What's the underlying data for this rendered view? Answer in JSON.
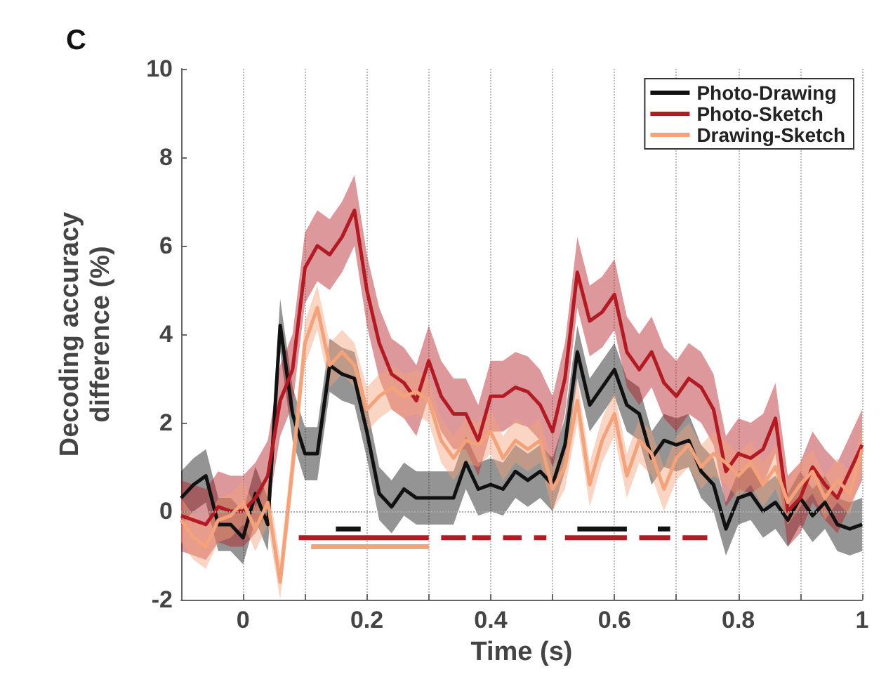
{
  "chart_data": {
    "type": "line",
    "title": "C",
    "xlabel": "Time (s)",
    "ylabel": "Decoding accuracy\ndifference (%)",
    "xlim": [
      -0.1,
      1
    ],
    "xticks": [
      0,
      {
        "value": 0.1,
        "label": null
      },
      0.2,
      {
        "value": 0.3,
        "label": null
      },
      0.4,
      {
        "value": 0.5,
        "label": null
      },
      0.6,
      {
        "value": 0.7,
        "label": null
      },
      0.8,
      {
        "value": 0.9,
        "label": null
      },
      1
    ],
    "ylim": [
      -2,
      10
    ],
    "yticks": [
      -2,
      0,
      2,
      4,
      6,
      8,
      10
    ],
    "grid": "x",
    "legend": "top right",
    "ref_lines": [
      {
        "axis": "y",
        "value": 0,
        "line_style": "dotted",
        "color": "#aaaaaa"
      }
    ],
    "x": [
      -0.1,
      -0.08,
      -0.06,
      -0.04,
      -0.02,
      0,
      0.02,
      0.04,
      0.06,
      0.08,
      0.1,
      0.12,
      0.14,
      0.16,
      0.18,
      0.2,
      0.22,
      0.24,
      0.26,
      0.28,
      0.3,
      0.32,
      0.34,
      0.36,
      0.38,
      0.4,
      0.42,
      0.44,
      0.46,
      0.48,
      0.5,
      0.52,
      0.54,
      0.56,
      0.58,
      0.6,
      0.62,
      0.64,
      0.66,
      0.68,
      0.7,
      0.72,
      0.74,
      0.76,
      0.78,
      0.8,
      0.82,
      0.84,
      0.86,
      0.88,
      0.9,
      0.92,
      0.94,
      0.96,
      0.98,
      1
    ],
    "series": [
      {
        "name": "Photo-Drawing",
        "color": "#111111",
        "values": [
          0.3,
          0.6,
          0.8,
          -0.3,
          -0.3,
          -0.6,
          0.4,
          -0.3,
          4.2,
          2.2,
          1.3,
          1.3,
          3.3,
          3.1,
          3.0,
          1.8,
          0.4,
          0.1,
          0.5,
          0.3,
          0.3,
          0.3,
          0.3,
          1.1,
          0.5,
          0.6,
          0.5,
          0.9,
          0.7,
          0.9,
          0.6,
          1.5,
          3.6,
          2.4,
          2.8,
          3.2,
          2.4,
          2.2,
          1.2,
          1.6,
          1.5,
          1.6,
          0.9,
          0.6,
          -0.4,
          0.3,
          0.4,
          0.0,
          0.2,
          -0.2,
          0.3,
          -0.1,
          0.2,
          -0.3,
          -0.4,
          -0.3
        ],
        "lower": [
          -0.3,
          0.0,
          0.2,
          -0.9,
          -0.9,
          -1.2,
          -0.2,
          -0.9,
          3.6,
          1.6,
          0.7,
          0.7,
          2.7,
          2.5,
          2.4,
          1.2,
          -0.2,
          -0.5,
          -0.1,
          -0.3,
          -0.3,
          -0.3,
          -0.3,
          0.5,
          -0.1,
          0.0,
          -0.1,
          0.3,
          0.1,
          0.3,
          0.0,
          0.9,
          3.0,
          1.8,
          2.2,
          2.6,
          1.8,
          1.6,
          0.6,
          1.0,
          0.9,
          1.0,
          0.3,
          0.0,
          -1.0,
          -0.3,
          -0.2,
          -0.6,
          -0.4,
          -0.8,
          -0.3,
          -0.7,
          -0.4,
          -0.9,
          -1.0,
          -0.9
        ],
        "upper": [
          0.9,
          1.2,
          1.4,
          0.3,
          0.3,
          0.0,
          1.0,
          0.3,
          4.8,
          2.8,
          1.9,
          1.9,
          3.9,
          3.7,
          3.6,
          2.4,
          1.0,
          0.7,
          1.1,
          0.9,
          0.9,
          0.9,
          0.9,
          1.7,
          1.1,
          1.2,
          1.1,
          1.5,
          1.3,
          1.5,
          1.2,
          2.1,
          4.2,
          3.0,
          3.4,
          3.8,
          3.0,
          2.8,
          1.8,
          2.2,
          2.1,
          2.2,
          1.5,
          1.2,
          0.2,
          0.9,
          1.0,
          0.6,
          0.8,
          0.4,
          0.9,
          0.5,
          0.8,
          0.3,
          0.2,
          0.3
        ]
      },
      {
        "name": "Photo-Sketch",
        "color": "#b31b24",
        "values": [
          -0.1,
          -0.2,
          -0.3,
          0.1,
          0.0,
          0.0,
          0.3,
          0.8,
          2.5,
          3.2,
          5.5,
          6.0,
          5.8,
          6.2,
          6.8,
          5.0,
          3.8,
          3.1,
          2.9,
          2.5,
          3.4,
          2.6,
          2.2,
          2.2,
          1.6,
          2.6,
          2.6,
          2.8,
          2.7,
          2.4,
          1.8,
          3.0,
          5.4,
          4.3,
          4.5,
          4.9,
          3.6,
          3.2,
          3.6,
          2.9,
          2.6,
          3.0,
          2.8,
          2.3,
          0.9,
          1.3,
          1.2,
          1.4,
          2.1,
          0.0,
          0.3,
          1.0,
          0.6,
          0.3,
          0.9,
          1.5
        ],
        "lower": [
          -0.9,
          -1.0,
          -1.1,
          -0.7,
          -0.8,
          -0.8,
          -0.5,
          0.0,
          1.7,
          2.4,
          4.7,
          5.2,
          5.0,
          5.4,
          6.0,
          4.2,
          3.0,
          2.3,
          2.1,
          1.7,
          2.6,
          1.8,
          1.4,
          1.4,
          0.8,
          1.8,
          1.8,
          2.0,
          1.9,
          1.6,
          1.0,
          2.2,
          4.6,
          3.5,
          3.7,
          4.1,
          2.8,
          2.4,
          2.8,
          2.1,
          1.8,
          2.2,
          2.0,
          1.5,
          0.1,
          0.5,
          0.4,
          0.6,
          1.3,
          -0.8,
          -0.5,
          0.2,
          -0.2,
          -0.5,
          0.1,
          0.7
        ],
        "upper": [
          0.7,
          0.6,
          0.5,
          0.9,
          0.8,
          0.8,
          1.1,
          1.6,
          3.3,
          4.0,
          6.3,
          6.8,
          6.6,
          7.0,
          7.6,
          5.8,
          4.6,
          3.9,
          3.7,
          3.3,
          4.2,
          3.4,
          3.0,
          3.0,
          2.4,
          3.4,
          3.4,
          3.6,
          3.5,
          3.2,
          2.6,
          3.8,
          6.2,
          5.1,
          5.3,
          5.7,
          4.4,
          4.0,
          4.4,
          3.7,
          3.4,
          3.8,
          3.6,
          3.1,
          1.7,
          2.1,
          2.0,
          2.2,
          2.9,
          0.8,
          1.1,
          1.8,
          1.4,
          1.1,
          1.7,
          2.3
        ]
      },
      {
        "name": "Drawing-Sketch",
        "color": "#f4a27a",
        "values": [
          -0.2,
          -0.6,
          -0.8,
          -0.2,
          -0.1,
          0.2,
          -0.4,
          0.2,
          -1.6,
          1.0,
          3.8,
          4.6,
          3.3,
          3.6,
          3.3,
          2.3,
          2.6,
          2.8,
          2.6,
          2.7,
          2.5,
          1.6,
          1.2,
          1.6,
          1.5,
          1.8,
          1.2,
          1.6,
          1.4,
          1.6,
          0.5,
          1.0,
          2.5,
          0.6,
          1.6,
          2.2,
          0.8,
          1.6,
          1.3,
          0.5,
          1.2,
          1.5,
          1.0,
          1.3,
          1.1,
          0.8,
          1.1,
          0.6,
          1.0,
          0.2,
          0.6,
          0.9,
          0.3,
          0.7,
          0.4,
          1.4
        ],
        "lower": [
          -0.7,
          -1.1,
          -1.3,
          -0.7,
          -0.6,
          -0.3,
          -0.9,
          -0.3,
          -2.0,
          0.5,
          3.3,
          4.1,
          2.8,
          3.1,
          2.8,
          1.8,
          2.1,
          2.3,
          2.1,
          2.2,
          2.0,
          1.1,
          0.7,
          1.1,
          1.0,
          1.3,
          0.7,
          1.1,
          0.9,
          1.1,
          0.0,
          0.5,
          2.0,
          0.1,
          1.1,
          1.7,
          0.3,
          1.1,
          0.8,
          0.0,
          0.7,
          1.0,
          0.5,
          0.8,
          0.6,
          0.3,
          0.6,
          0.1,
          0.5,
          -0.3,
          0.1,
          0.4,
          -0.2,
          0.2,
          -0.1,
          0.9
        ],
        "upper": [
          0.3,
          -0.1,
          -0.3,
          0.3,
          0.4,
          0.7,
          0.1,
          0.7,
          -1.1,
          1.5,
          4.3,
          5.1,
          3.8,
          4.1,
          3.8,
          2.8,
          3.1,
          3.3,
          3.1,
          3.2,
          3.0,
          2.1,
          1.7,
          2.1,
          2.0,
          2.3,
          1.7,
          2.1,
          1.9,
          2.1,
          1.0,
          1.5,
          3.0,
          1.1,
          2.1,
          2.7,
          1.3,
          2.1,
          1.8,
          1.0,
          1.7,
          2.0,
          1.5,
          1.8,
          1.6,
          1.3,
          1.6,
          1.1,
          1.5,
          0.7,
          1.1,
          1.4,
          0.8,
          1.2,
          0.9,
          1.9
        ]
      },
      {
        "color": "#111111",
        "x": [
          0.15,
          0.19
        ],
        "values": [
          -0.4,
          -0.4
        ]
      },
      {
        "color": "#111111",
        "x": [
          0.54,
          0.62
        ],
        "values": [
          -0.4,
          -0.4
        ]
      },
      {
        "color": "#111111",
        "x": [
          0.67,
          0.69
        ],
        "values": [
          -0.4,
          -0.4
        ]
      },
      {
        "color": "#b31b24",
        "x": [
          0.09,
          0.3
        ],
        "values": [
          -0.6,
          -0.6
        ]
      },
      {
        "color": "#b31b24",
        "x": [
          0.32,
          0.36
        ],
        "values": [
          -0.6,
          -0.6
        ]
      },
      {
        "color": "#b31b24",
        "x": [
          0.37,
          0.4
        ],
        "values": [
          -0.6,
          -0.6
        ]
      },
      {
        "color": "#b31b24",
        "x": [
          0.42,
          0.45
        ],
        "values": [
          -0.6,
          -0.6
        ]
      },
      {
        "color": "#b31b24",
        "x": [
          0.47,
          0.49
        ],
        "values": [
          -0.6,
          -0.6
        ]
      },
      {
        "color": "#b31b24",
        "x": [
          0.52,
          0.62
        ],
        "values": [
          -0.6,
          -0.6
        ]
      },
      {
        "color": "#b31b24",
        "x": [
          0.64,
          0.69
        ],
        "values": [
          -0.6,
          -0.6
        ]
      },
      {
        "color": "#b31b24",
        "x": [
          0.71,
          0.75
        ],
        "values": [
          -0.6,
          -0.6
        ]
      },
      {
        "color": "#f4a27a",
        "x": [
          0.11,
          0.3
        ],
        "values": [
          -0.8,
          -0.8
        ]
      }
    ]
  }
}
